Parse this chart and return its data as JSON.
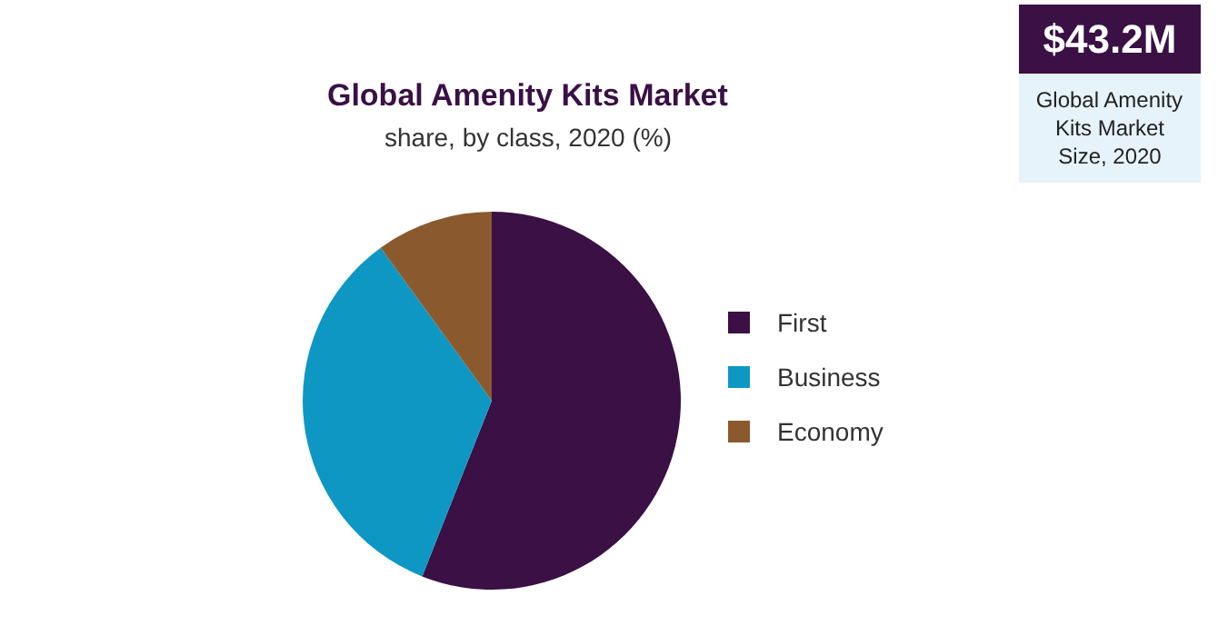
{
  "chart_data": {
    "type": "pie",
    "title": "Global Amenity Kits Market",
    "subtitle": "share, by class, 2020 (%)",
    "categories": [
      "First",
      "Business",
      "Economy"
    ],
    "values": [
      56,
      34,
      10
    ],
    "colors": [
      "#3a1045",
      "#0e97c3",
      "#8a5a2e"
    ],
    "legend": "right",
    "annotations": [
      "$43.2M",
      "Global Amenity Kits Market Size, 2020"
    ]
  }
}
